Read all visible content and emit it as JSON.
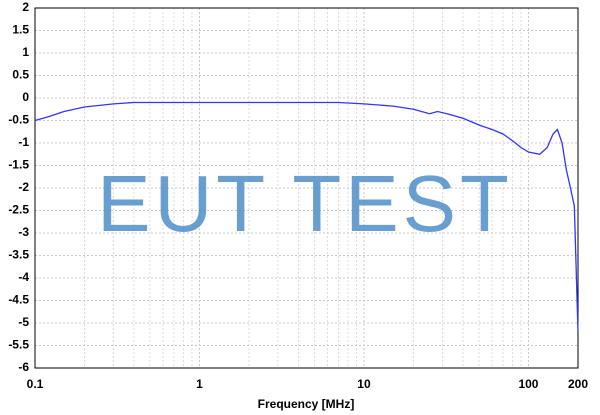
{
  "chart_data": {
    "type": "line",
    "watermark": "EUT TEST",
    "x_label": "Frequency [MHz]",
    "x_scale": "log",
    "grid": true,
    "xlim": [
      0.1,
      200
    ],
    "xticks": [
      0.1,
      1,
      10,
      100,
      200
    ],
    "ylim": [
      -6,
      2
    ],
    "yticks": [
      2,
      1.5,
      1,
      0.5,
      0,
      -0.5,
      -1,
      -1.5,
      -2,
      -2.5,
      -3,
      -3.5,
      -4,
      -4.5,
      -5,
      -5.5,
      -6
    ],
    "x": [
      0.1,
      0.12,
      0.15,
      0.2,
      0.3,
      0.4,
      1,
      7,
      10,
      15,
      20,
      25,
      28,
      32,
      40,
      50,
      60,
      70,
      80,
      90,
      100,
      117,
      130,
      141,
      150,
      160,
      170,
      180,
      190,
      200
    ],
    "series": [
      {
        "color": "#3333ff",
        "values": [
          -0.5,
          -0.42,
          -0.3,
          -0.2,
          -0.13,
          -0.1,
          -0.1,
          -0.1,
          -0.13,
          -0.18,
          -0.25,
          -0.35,
          -0.3,
          -0.35,
          -0.45,
          -0.6,
          -0.7,
          -0.8,
          -0.95,
          -1.1,
          -1.2,
          -1.25,
          -1.1,
          -0.8,
          -0.7,
          -1.0,
          -1.6,
          -2.0,
          -2.4,
          -5.2
        ]
      }
    ]
  }
}
